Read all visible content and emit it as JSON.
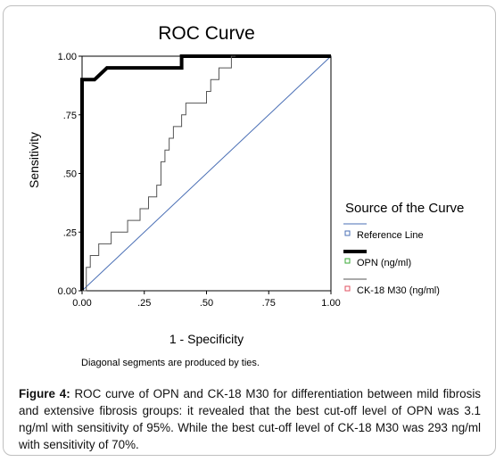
{
  "chart_data": {
    "type": "line",
    "title": "ROC Curve",
    "xlabel": "1 - Specificity",
    "ylabel": "Sensitivity",
    "xlim": [
      0,
      1
    ],
    "ylim": [
      0,
      1
    ],
    "x_ticks": [
      0,
      0.25,
      0.5,
      0.75,
      1
    ],
    "x_tick_labels": [
      "0.00",
      ".25",
      ".50",
      ".75",
      "1.00"
    ],
    "y_ticks": [
      0,
      0.25,
      0.5,
      0.75,
      1
    ],
    "y_tick_labels": [
      "0.00",
      ".25",
      ".50",
      ".75",
      "1.00"
    ],
    "grid": false,
    "legend_title": "Source of the Curve",
    "legend_position": "right",
    "series": [
      {
        "name": "Reference Line",
        "color": "#4a6fb5",
        "x": [
          0,
          1
        ],
        "y": [
          0,
          1
        ]
      },
      {
        "name": "OPN (ng/ml)",
        "color": "#000000",
        "x": [
          0,
          0,
          0.05,
          0.05,
          0.1,
          0.1,
          0.4,
          0.4,
          1
        ],
        "y": [
          0,
          0.9,
          0.9,
          0.9,
          0.95,
          0.95,
          0.95,
          1.0,
          1.0
        ]
      },
      {
        "name": "CK-18 M30 (ng/ml)",
        "color": "#555555",
        "x": [
          0,
          0.017,
          0.017,
          0.033,
          0.033,
          0.067,
          0.067,
          0.117,
          0.117,
          0.183,
          0.183,
          0.233,
          0.233,
          0.267,
          0.267,
          0.3,
          0.3,
          0.317,
          0.317,
          0.317,
          0.333,
          0.333,
          0.35,
          0.35,
          0.367,
          0.367,
          0.383,
          0.383,
          0.4,
          0.4,
          0.417,
          0.417,
          0.433,
          0.433,
          0.45,
          0.45,
          0.5,
          0.5,
          0.517,
          0.517,
          0.533,
          0.533,
          0.55,
          0.55,
          0.567,
          0.567,
          0.6,
          0.6,
          0.617,
          0.617
        ],
        "y": [
          0,
          0,
          0.1,
          0.1,
          0.15,
          0.15,
          0.2,
          0.2,
          0.25,
          0.25,
          0.3,
          0.3,
          0.35,
          0.35,
          0.4,
          0.4,
          0.45,
          0.45,
          0.55,
          0.55,
          0.55,
          0.6,
          0.6,
          0.65,
          0.65,
          0.7,
          0.7,
          0.7,
          0.7,
          0.75,
          0.75,
          0.8,
          0.8,
          0.8,
          0.8,
          0.8,
          0.8,
          0.85,
          0.85,
          0.9,
          0.9,
          0.9,
          0.9,
          0.95,
          0.95,
          0.95,
          0.95,
          1.0,
          1.0,
          1.0
        ]
      }
    ]
  },
  "note": "Diagonal segments are produced by ties.",
  "caption": {
    "label": "Figure 4:",
    "text": " ROC curve of OPN and CK-18 M30 for differentiation between mild fibrosis and extensive fibrosis groups: it revealed that the best cut-off level of OPN was 3.1 ng/ml with sensitivity of 95%. While the best cut-off level of CK-18 M30 was 293 ng/ml with sensitivity of 70%."
  }
}
